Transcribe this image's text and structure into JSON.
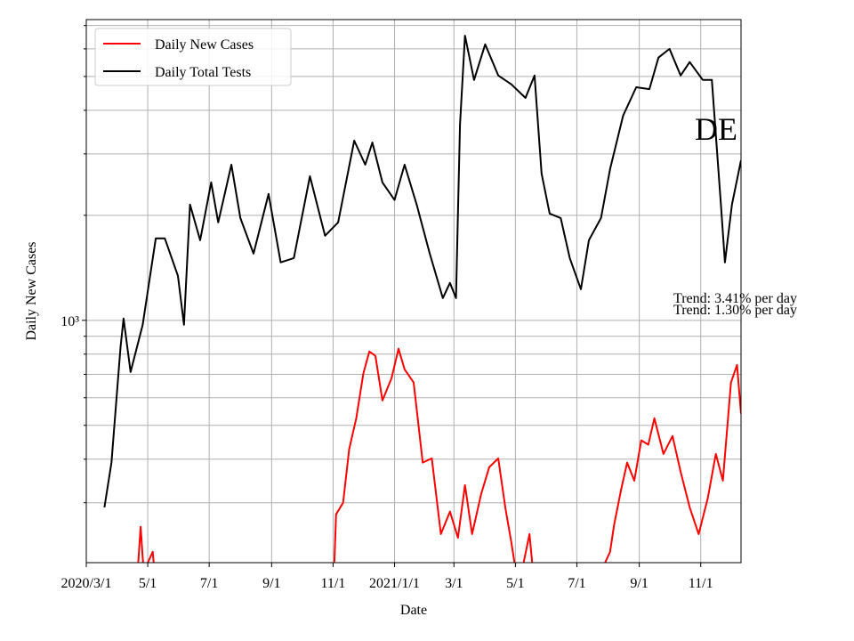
{
  "chart_data": {
    "type": "line",
    "xlabel": "Date",
    "ylabel": "Daily New Cases",
    "log_y": true,
    "grid": true,
    "legend": "upper left",
    "xlim": [
      "2020-03-01",
      "2021-12-11"
    ],
    "xticks": [
      {
        "value": "2020-03-01",
        "label": "2020/3/1"
      },
      {
        "value": "2020-05-01",
        "label": "5/1"
      },
      {
        "value": "2020-07-01",
        "label": "7/1"
      },
      {
        "value": "2020-09-01",
        "label": "9/1"
      },
      {
        "value": "2020-11-01",
        "label": "11/1"
      },
      {
        "value": "2021-01-01",
        "label": "2021/1/1"
      },
      {
        "value": "2021-03-01",
        "label": "3/1"
      },
      {
        "value": "2021-05-01",
        "label": "5/1"
      },
      {
        "value": "2021-07-01",
        "label": "7/1"
      },
      {
        "value": "2021-09-01",
        "label": "9/1"
      },
      {
        "value": "2021-11-01",
        "label": "11/1"
      }
    ],
    "ylim": [
      202,
      7280
    ],
    "yticks": [
      {
        "value": 1000,
        "label": "10³"
      }
    ],
    "minor_yticks": [
      300,
      400,
      500,
      600,
      700,
      800,
      900,
      2000,
      3000,
      4000,
      5000,
      6000,
      7000
    ],
    "annotations": [
      "DE",
      "Trend: 3.41% per day",
      "Trend: 1.30% per day"
    ],
    "series": [
      {
        "name": "Daily New Cases",
        "color": "#ff0000",
        "x": [
          "2020-04-21",
          "2020-04-24",
          "2020-04-27",
          "2020-05-06",
          "2020-05-09",
          "2020-08-01",
          "2020-11-02",
          "2020-11-04",
          "2020-11-11",
          "2020-11-17",
          "2020-11-24",
          "2020-12-01",
          "2020-12-07",
          "2020-12-13",
          "2020-12-20",
          "2020-12-29",
          "2021-01-05",
          "2021-01-11",
          "2021-01-20",
          "2021-01-29",
          "2021-02-07",
          "2021-02-16",
          "2021-02-25",
          "2021-03-05",
          "2021-03-12",
          "2021-03-19",
          "2021-03-28",
          "2021-04-05",
          "2021-04-14",
          "2021-04-21",
          "2021-04-27",
          "2021-05-04",
          "2021-05-15",
          "2021-05-20",
          "2021-06-24",
          "2021-08-03",
          "2021-08-07",
          "2021-08-14",
          "2021-08-20",
          "2021-08-27",
          "2021-09-03",
          "2021-09-10",
          "2021-09-16",
          "2021-09-25",
          "2021-10-04",
          "2021-10-12",
          "2021-10-21",
          "2021-10-30",
          "2021-11-08",
          "2021-11-16",
          "2021-11-23",
          "2021-12-01",
          "2021-12-07",
          "2021-12-11"
        ],
        "values": [
          190,
          256,
          190,
          217,
          171,
          null,
          190,
          278,
          300,
          427,
          524,
          703,
          814,
          791,
          589,
          682,
          829,
          724,
          663,
          391,
          402,
          244,
          283,
          238,
          337,
          244,
          318,
          379,
          402,
          291,
          231,
          171,
          244,
          171,
          121,
          217,
          259,
          328,
          391,
          347,
          453,
          440,
          524,
          414,
          466,
          368,
          291,
          244,
          309,
          414,
          347,
          663,
          745,
          540
        ]
      },
      {
        "name": "Daily Total Tests",
        "color": "#000000",
        "x": [
          "2020-03-19",
          "2020-03-26",
          "2020-04-04",
          "2020-04-07",
          "2020-04-14",
          "2020-04-26",
          "2020-05-09",
          "2020-05-18",
          "2020-05-31",
          "2020-06-06",
          "2020-06-12",
          "2020-06-22",
          "2020-07-03",
          "2020-07-10",
          "2020-07-23",
          "2020-08-01",
          "2020-08-14",
          "2020-08-29",
          "2020-09-10",
          "2020-09-23",
          "2020-10-09",
          "2020-10-24",
          "2020-11-06",
          "2020-11-22",
          "2020-12-03",
          "2020-12-10",
          "2020-12-20",
          "2021-01-01",
          "2021-01-11",
          "2021-01-23",
          "2021-02-05",
          "2021-02-18",
          "2021-02-25",
          "2021-03-03",
          "2021-03-07",
          "2021-03-12",
          "2021-03-21",
          "2021-04-01",
          "2021-04-14",
          "2021-04-27",
          "2021-05-11",
          "2021-05-20",
          "2021-05-27",
          "2021-06-04",
          "2021-06-15",
          "2021-06-24",
          "2021-07-05",
          "2021-07-13",
          "2021-07-25",
          "2021-08-03",
          "2021-08-16",
          "2021-08-29",
          "2021-09-11",
          "2021-09-20",
          "2021-10-01",
          "2021-10-12",
          "2021-10-21",
          "2021-11-03",
          "2021-11-12",
          "2021-11-21",
          "2021-11-25",
          "2021-12-02",
          "2021-12-11"
        ],
        "values": [
          291,
          391,
          838,
          1012,
          711,
          971,
          1717,
          1717,
          1342,
          971,
          2147,
          1697,
          2485,
          1909,
          2793,
          1964,
          1553,
          2302,
          1466,
          1508,
          2588,
          1748,
          1909,
          3274,
          2793,
          3233,
          2485,
          2213,
          2793,
          2147,
          1553,
          1158,
          1280,
          1158,
          3641,
          6546,
          4887,
          6181,
          5034,
          4749,
          4340,
          5034,
          2635,
          2023,
          1964,
          1508,
          1228,
          1697,
          1964,
          2714,
          3863,
          4658,
          4601,
          5663,
          6001,
          5034,
          5500,
          4887,
          4887,
          2147,
          1466,
          2147,
          2877
        ]
      }
    ]
  }
}
